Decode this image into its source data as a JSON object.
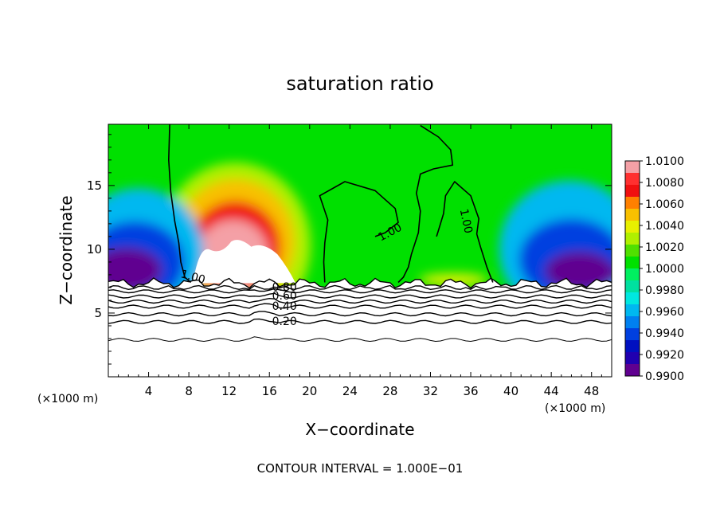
{
  "chart_data": {
    "type": "heatmap",
    "title": "saturation ratio",
    "xlabel": "X−coordinate",
    "ylabel": "Z−coordinate",
    "x_unit_left": "(×1000 m)",
    "x_unit_right": "(×1000 m)",
    "xlim": [
      0,
      50
    ],
    "ylim": [
      0,
      19.8
    ],
    "x_ticks": [
      4,
      8,
      12,
      16,
      20,
      24,
      28,
      32,
      36,
      40,
      44,
      48
    ],
    "y_ticks": [
      5,
      10,
      15
    ],
    "grid": false,
    "footer": "CONTOUR INTERVAL = 1.000E−01",
    "colorbar": {
      "position": "right",
      "min": 0.99,
      "max": 1.01,
      "labels": [
        "1.0100",
        "1.0080",
        "1.0060",
        "1.0040",
        "1.0020",
        "1.0000",
        "0.9980",
        "0.9960",
        "0.9940",
        "0.9920",
        "0.9900"
      ],
      "colors": [
        "#f4a0a6",
        "#ff3030",
        "#f01010",
        "#ff8000",
        "#f8c000",
        "#e8f000",
        "#b0f000",
        "#50e000",
        "#00e000",
        "#00f060",
        "#00e0a0",
        "#00e8e0",
        "#00b8f0",
        "#0080f0",
        "#0040e0",
        "#0010c0",
        "#2000b0",
        "#600090"
      ]
    },
    "contour_labels": [
      {
        "text": "1.00",
        "x": 8.4,
        "z": 7.8,
        "angle": 15
      },
      {
        "text": "1.00",
        "x": 28.0,
        "z": 11.3,
        "angle": -28
      },
      {
        "text": "1.00",
        "x": 35.5,
        "z": 12.2,
        "angle": 78
      },
      {
        "text": "0.80",
        "x": 17.5,
        "z": 7.0,
        "angle": 0
      },
      {
        "text": "0.60",
        "x": 17.5,
        "z": 6.3,
        "angle": 0
      },
      {
        "text": "0.40",
        "x": 17.5,
        "z": 5.5,
        "angle": 0
      },
      {
        "text": "0.20",
        "x": 17.5,
        "z": 4.3,
        "angle": 0
      }
    ],
    "sat_contours": [
      {
        "level": 1.0,
        "points": [
          [
            6.1,
            19.8
          ],
          [
            6.0,
            17
          ],
          [
            6.2,
            14.5
          ],
          [
            6.6,
            12.2
          ],
          [
            7.0,
            10.5
          ],
          [
            7.2,
            9.0
          ],
          [
            7.6,
            7.8
          ],
          [
            8.2,
            7.4
          ]
        ]
      },
      {
        "level": 1.0,
        "points": [
          [
            21.5,
            7.4
          ],
          [
            21.4,
            9
          ],
          [
            21.5,
            10.5
          ],
          [
            21.8,
            12.3
          ],
          [
            21.0,
            14.2
          ],
          [
            23.5,
            15.3
          ],
          [
            26.5,
            14.6
          ],
          [
            28.5,
            13.2
          ],
          [
            28.8,
            12.1
          ],
          [
            27.5,
            11.3
          ],
          [
            26.5,
            11.0
          ]
        ]
      },
      {
        "level": 1.0,
        "points": [
          [
            31.0,
            19.7
          ],
          [
            32.8,
            18.8
          ],
          [
            34.0,
            17.8
          ],
          [
            34.2,
            16.6
          ],
          [
            32.3,
            16.3
          ],
          [
            31.0,
            15.9
          ],
          [
            30.6,
            14.4
          ],
          [
            31.0,
            13.0
          ],
          [
            30.8,
            11.3
          ],
          [
            30.1,
            9.6
          ],
          [
            29.8,
            8.6
          ],
          [
            29.3,
            7.8
          ],
          [
            28.8,
            7.4
          ]
        ]
      },
      {
        "level": 1.0,
        "points": [
          [
            38.2,
            7.4
          ],
          [
            37.6,
            8.6
          ],
          [
            37.0,
            10.1
          ],
          [
            36.6,
            11.2
          ],
          [
            36.8,
            12.4
          ],
          [
            36.0,
            14.2
          ],
          [
            34.4,
            15.3
          ],
          [
            33.5,
            14.2
          ],
          [
            33.3,
            12.8
          ],
          [
            32.8,
            11.5
          ],
          [
            32.6,
            11.0
          ]
        ]
      }
    ],
    "heat_blobs": [
      {
        "cx": 12.6,
        "cz": 10.3,
        "rx": 7.5,
        "rz": 6.5,
        "value": 1.003
      },
      {
        "cx": 12.6,
        "cz": 10.6,
        "rx": 5.9,
        "rz": 4.9,
        "value": 1.005
      },
      {
        "cx": 12.6,
        "cz": 10.2,
        "rx": 4.5,
        "rz": 3.6,
        "value": 1.007
      },
      {
        "cx": 12.4,
        "cz": 9.6,
        "rx": 3.5,
        "rz": 2.7,
        "value": 1.009
      },
      {
        "cx": 34.3,
        "cz": 7.6,
        "rx": 3.4,
        "rz": 0.5,
        "value": 1.004
      },
      {
        "cx": 3.0,
        "cz": 9.6,
        "rx": 6.5,
        "rz": 5.2,
        "value": 0.996
      },
      {
        "cx": 2.6,
        "cz": 9.0,
        "rx": 5.0,
        "rz": 3.2,
        "value": 0.9935
      },
      {
        "cx": 1.8,
        "cz": 8.4,
        "rx": 3.5,
        "rz": 1.7,
        "value": 0.991
      },
      {
        "cx": 45.8,
        "cz": 10.0,
        "rx": 7.0,
        "rz": 5.4,
        "value": 0.996
      },
      {
        "cx": 46.0,
        "cz": 9.2,
        "rx": 5.2,
        "rz": 3.2,
        "value": 0.9935
      },
      {
        "cx": 46.8,
        "cz": 8.3,
        "rx": 3.4,
        "rz": 1.5,
        "value": 0.991
      }
    ],
    "rh_contours": [
      {
        "level": 0.8,
        "z": 7.0
      },
      {
        "level": 0.7,
        "z": 6.7
      },
      {
        "level": 0.6,
        "z": 6.3
      },
      {
        "level": 0.5,
        "z": 5.9
      },
      {
        "level": 0.4,
        "z": 5.5
      },
      {
        "level": 0.3,
        "z": 4.9
      },
      {
        "level": 0.2,
        "z": 4.3
      },
      {
        "level": 0.1,
        "z": 2.9
      }
    ]
  }
}
